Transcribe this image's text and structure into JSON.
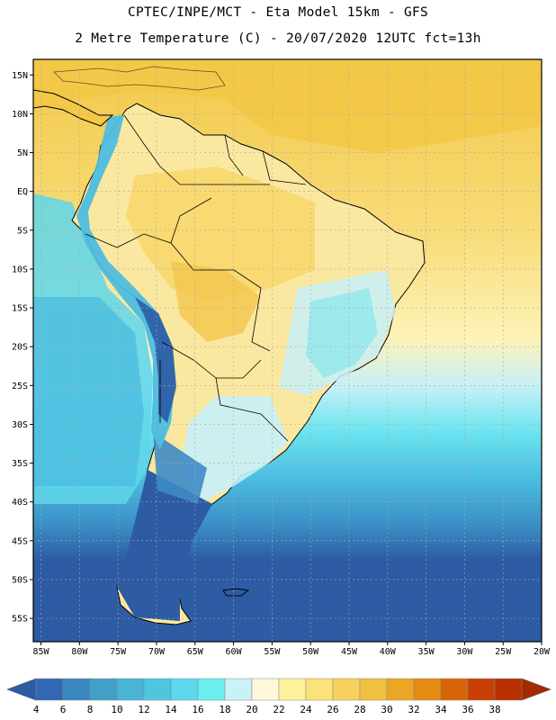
{
  "header": {
    "line1": "CPTEC/INPE/MCT -  Eta Model 15km - GFS",
    "line2": "2 Metre Temperature (C) - 20/07/2020 12UTC fct=13h"
  },
  "map": {
    "lat_labels": [
      "15N",
      "10N",
      "5N",
      "EQ",
      "5S",
      "10S",
      "15S",
      "20S",
      "25S",
      "30S",
      "35S",
      "40S",
      "45S",
      "50S",
      "55S"
    ],
    "lon_labels": [
      "85W",
      "80W",
      "75W",
      "70W",
      "65W",
      "60W",
      "55W",
      "50W",
      "45W",
      "40W",
      "35W",
      "30W",
      "25W",
      "20W"
    ],
    "lat_range": [
      17,
      -58
    ],
    "lon_range": [
      -86,
      -20
    ]
  },
  "colorbar": {
    "labels": [
      "4",
      "6",
      "8",
      "10",
      "12",
      "14",
      "16",
      "18",
      "20",
      "22",
      "24",
      "26",
      "28",
      "30",
      "32",
      "34",
      "36",
      "38"
    ],
    "colors": [
      "#3168b4",
      "#3a86c0",
      "#42a0c8",
      "#49b4d6",
      "#4fc6e0",
      "#5dd8ec",
      "#6befef",
      "#c8f2f8",
      "#fff7dc",
      "#fff29c",
      "#fce27b",
      "#f7d15d",
      "#f0c040",
      "#eda524",
      "#e58b14",
      "#d96408",
      "#c93e04",
      "#b83000"
    ],
    "end_colors": {
      "low": "#2d5ba4",
      "high": "#a62a00"
    }
  },
  "bands": {
    "ocean_north": "#f5cf57",
    "land_north": "#f8dd7c",
    "land_central": "#fbeaa6",
    "andes": "#6ae4ee",
    "south_cold": "#2d5ba4",
    "south_mid": "#3e89c4",
    "south_cool": "#54c6e6"
  }
}
